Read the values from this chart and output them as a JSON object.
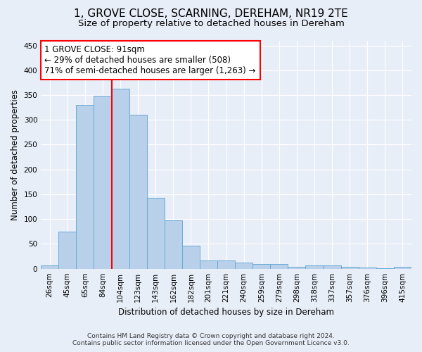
{
  "title": "1, GROVE CLOSE, SCARNING, DEREHAM, NR19 2TE",
  "subtitle": "Size of property relative to detached houses in Dereham",
  "xlabel": "Distribution of detached houses by size in Dereham",
  "ylabel": "Number of detached properties",
  "categories": [
    "26sqm",
    "45sqm",
    "65sqm",
    "84sqm",
    "104sqm",
    "123sqm",
    "143sqm",
    "162sqm",
    "182sqm",
    "201sqm",
    "221sqm",
    "240sqm",
    "259sqm",
    "279sqm",
    "298sqm",
    "318sqm",
    "337sqm",
    "357sqm",
    "376sqm",
    "396sqm",
    "415sqm"
  ],
  "values": [
    7,
    75,
    330,
    348,
    363,
    310,
    143,
    98,
    46,
    16,
    16,
    13,
    10,
    9,
    4,
    7,
    6,
    4,
    2,
    1,
    4
  ],
  "bar_color": "#b8d0ea",
  "bar_edge_color": "#6aaad4",
  "vline_color": "red",
  "vline_x": 3.5,
  "annotation_text": "1 GROVE CLOSE: 91sqm\n← 29% of detached houses are smaller (508)\n71% of semi-detached houses are larger (1,263) →",
  "annotation_box_color": "white",
  "annotation_box_edgecolor": "red",
  "ylim": [
    0,
    460
  ],
  "yticks": [
    0,
    50,
    100,
    150,
    200,
    250,
    300,
    350,
    400,
    450
  ],
  "footer_line1": "Contains HM Land Registry data © Crown copyright and database right 2024.",
  "footer_line2": "Contains public sector information licensed under the Open Government Licence v3.0.",
  "background_color": "#e8eef8",
  "plot_background_color": "#e8eef8",
  "grid_color": "white",
  "title_fontsize": 11,
  "subtitle_fontsize": 9.5,
  "axis_label_fontsize": 8.5,
  "tick_fontsize": 7.5,
  "annotation_fontsize": 8.5,
  "footer_fontsize": 6.5
}
